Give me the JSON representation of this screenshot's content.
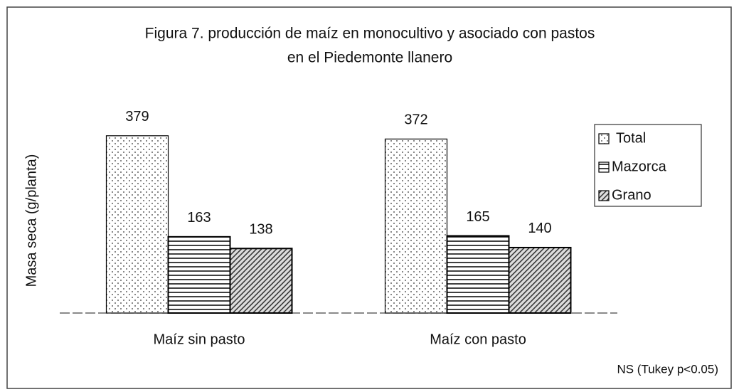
{
  "chart_data": {
    "type": "bar",
    "title": [
      "Figura 7. producción de maíz en monocultivo y asociado con pastos",
      "en el Piedemonte llanero"
    ],
    "ylabel": "Masa seca (g/planta)",
    "categories": [
      "Maíz sin pasto",
      "Maíz con pasto"
    ],
    "series": [
      {
        "name": "Total",
        "color": "#000000",
        "pattern": "dots",
        "values": [
          379,
          372
        ]
      },
      {
        "name": "Mazorca",
        "color": "#000000",
        "pattern": "horizontal",
        "values": [
          163,
          165
        ]
      },
      {
        "name": "Grano",
        "color": "#000000",
        "pattern": "diagonal",
        "values": [
          138,
          140
        ]
      }
    ],
    "ylim": [
      0,
      400
    ],
    "legend": "right",
    "annotation": "NS (Tukey p<0.05)"
  }
}
